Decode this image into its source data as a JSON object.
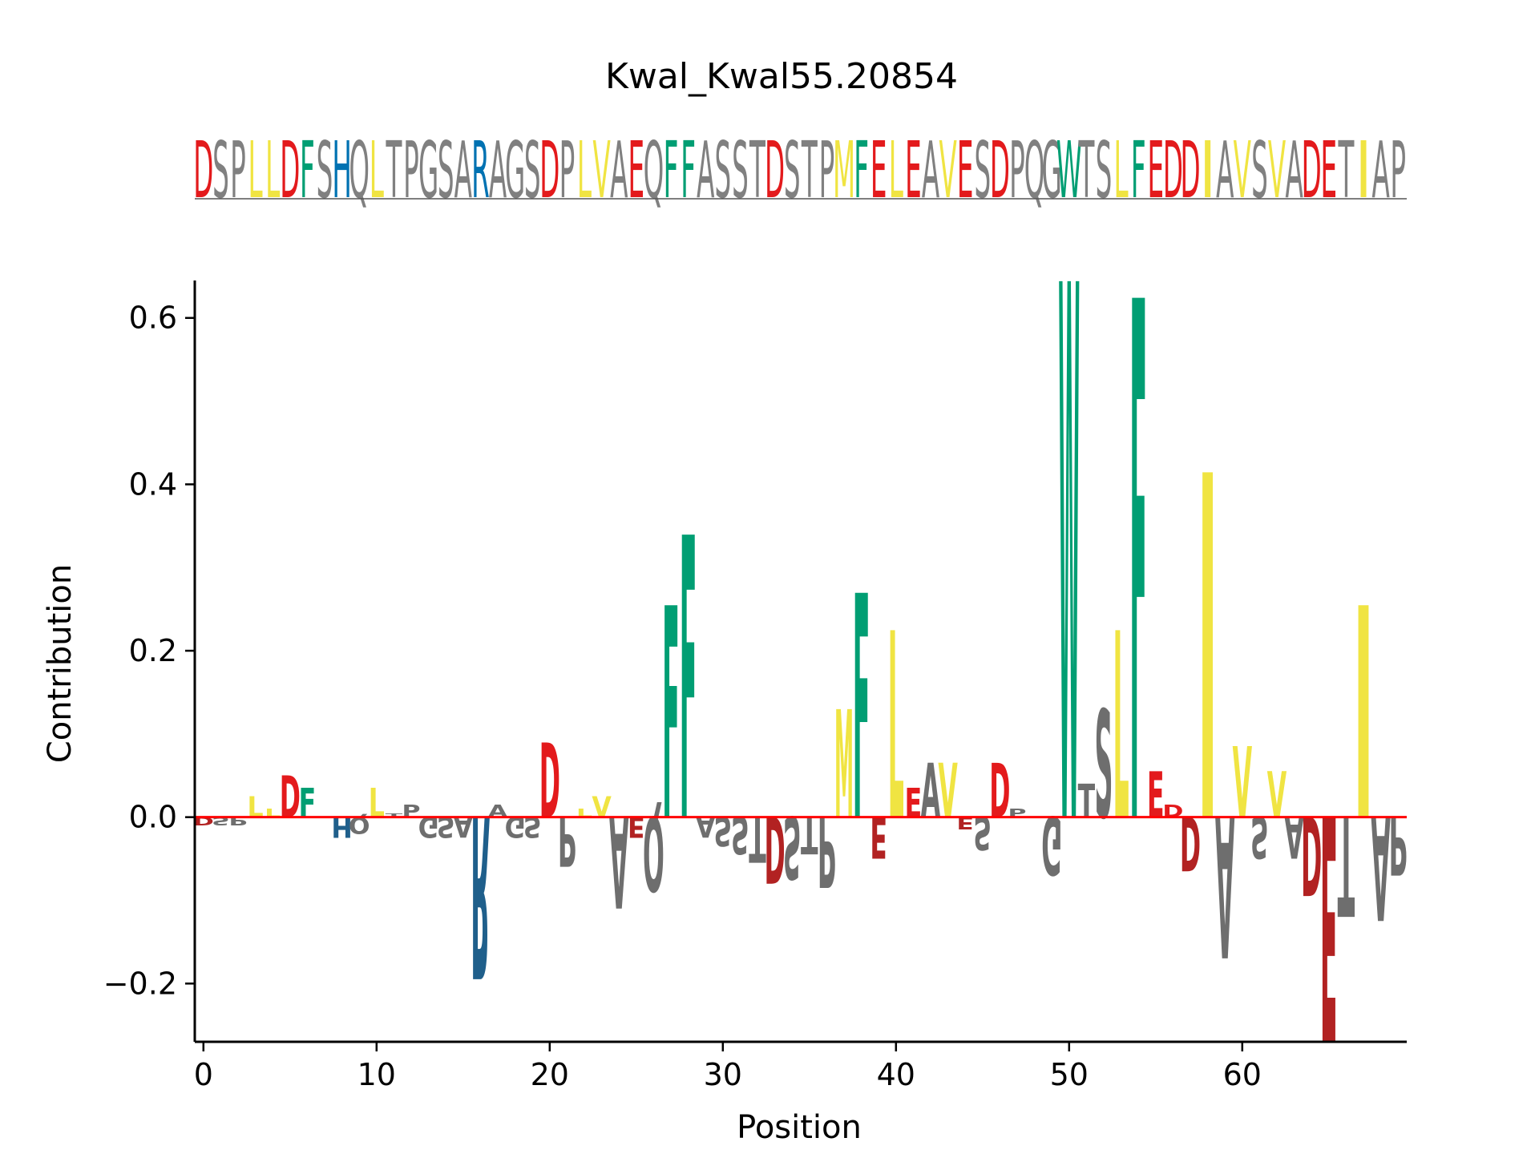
{
  "chart_data": {
    "type": "sequence-logo",
    "title": "Kwal_Kwal55.20854",
    "xlabel": "Position",
    "ylabel": "Contribution",
    "xlim": [
      -0.5,
      69.5
    ],
    "ylim": [
      -0.27,
      0.645
    ],
    "xticks": [
      0,
      10,
      20,
      30,
      40,
      50,
      60
    ],
    "yticks": [
      -0.2,
      0.0,
      0.2,
      0.4,
      0.6
    ],
    "ytick_labels": [
      "−0.2",
      "0.0",
      "0.2",
      "0.4",
      "0.6"
    ],
    "sequence": "DSPLLDFSHQLTPGSARAGSDPLVAEQFFASSTDSTPMFELEAVESDPQGWTSLFEDDIAVSVADETIAP",
    "contributions": [
      -0.01,
      -0.01,
      -0.01,
      0.025,
      0.01,
      0.05,
      0.035,
      0,
      -0.025,
      -0.02,
      0.035,
      0.004,
      0.015,
      -0.025,
      -0.025,
      -0.025,
      -0.195,
      0.015,
      -0.025,
      -0.025,
      0.09,
      -0.06,
      0.01,
      0.025,
      -0.11,
      -0.025,
      -0.09,
      0.255,
      0.34,
      -0.025,
      -0.035,
      -0.045,
      -0.055,
      -0.08,
      -0.075,
      -0.045,
      -0.085,
      0.13,
      0.27,
      -0.05,
      0.225,
      0.035,
      0.065,
      0.065,
      -0.015,
      -0.04,
      0.065,
      0.01,
      0,
      -0.07,
      0.645,
      0.04,
      0.13,
      0.225,
      0.625,
      0.055,
      0.015,
      -0.065,
      0.415,
      -0.17,
      0.085,
      -0.05,
      0.055,
      -0.05,
      -0.095,
      -0.27,
      -0.12,
      0.255,
      -0.125,
      -0.07
    ],
    "colors": {
      "acidic": "#e31a1c",
      "acidic_negative": "#b22222",
      "hydrophobic": "#f0e442",
      "aromatic": "#009e73",
      "basic": "#0072b2",
      "basic_negative": "#1f5f8b",
      "other": "#6e6e6e",
      "baseline": "#ff0000"
    }
  }
}
